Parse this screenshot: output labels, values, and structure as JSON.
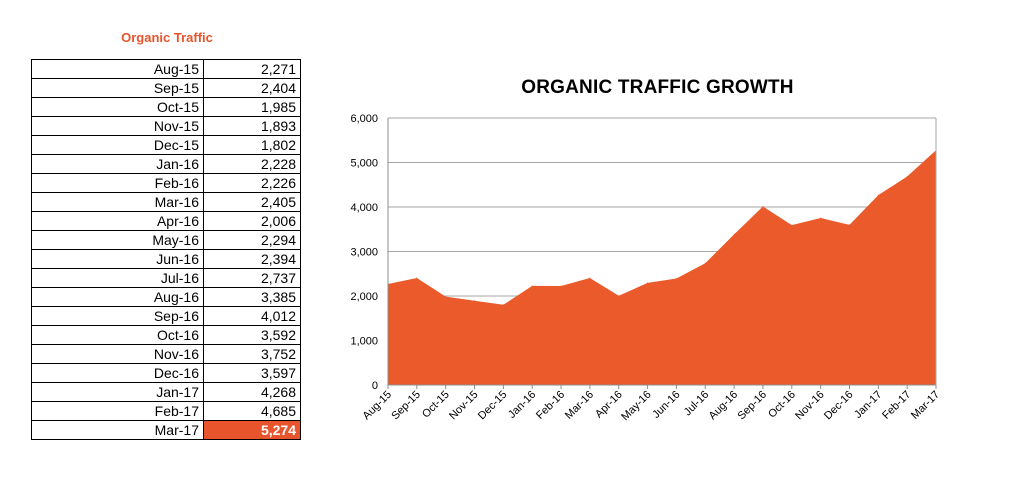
{
  "table": {
    "title": "Organic Traffic",
    "rows": [
      {
        "month": "Aug-15",
        "value": "2,271"
      },
      {
        "month": "Sep-15",
        "value": "2,404"
      },
      {
        "month": "Oct-15",
        "value": "1,985"
      },
      {
        "month": "Nov-15",
        "value": "1,893"
      },
      {
        "month": "Dec-15",
        "value": "1,802"
      },
      {
        "month": "Jan-16",
        "value": "2,228"
      },
      {
        "month": "Feb-16",
        "value": "2,226"
      },
      {
        "month": "Mar-16",
        "value": "2,405"
      },
      {
        "month": "Apr-16",
        "value": "2,006"
      },
      {
        "month": "May-16",
        "value": "2,294"
      },
      {
        "month": "Jun-16",
        "value": "2,394"
      },
      {
        "month": "Jul-16",
        "value": "2,737"
      },
      {
        "month": "Aug-16",
        "value": "3,385"
      },
      {
        "month": "Sep-16",
        "value": "4,012"
      },
      {
        "month": "Oct-16",
        "value": "3,592"
      },
      {
        "month": "Nov-16",
        "value": "3,752"
      },
      {
        "month": "Dec-16",
        "value": "3,597"
      },
      {
        "month": "Jan-17",
        "value": "4,268"
      },
      {
        "month": "Feb-17",
        "value": "4,685"
      },
      {
        "month": "Mar-17",
        "value": "5,274"
      }
    ],
    "highlight_color": "#e8542c"
  },
  "chart_data": {
    "type": "area",
    "title": "ORGANIC TRAFFIC GROWTH",
    "categories": [
      "Aug-15",
      "Sep-15",
      "Oct-15",
      "Nov-15",
      "Dec-15",
      "Jan-16",
      "Feb-16",
      "Mar-16",
      "Apr-16",
      "May-16",
      "Jun-16",
      "Jul-16",
      "Aug-16",
      "Sep-16",
      "Oct-16",
      "Nov-16",
      "Dec-16",
      "Jan-17",
      "Feb-17",
      "Mar-17"
    ],
    "values": [
      2271,
      2404,
      1985,
      1893,
      1802,
      2228,
      2226,
      2405,
      2006,
      2294,
      2394,
      2737,
      3385,
      4012,
      3592,
      3752,
      3597,
      4268,
      4685,
      5274
    ],
    "ylim": [
      0,
      6000
    ],
    "yticks": [
      "0",
      "1,000",
      "2,000",
      "3,000",
      "4,000",
      "5,000",
      "6,000"
    ],
    "grid": true,
    "legend": "none",
    "xlabel": "",
    "ylabel": "",
    "fill_color": "#ea5a2b"
  }
}
